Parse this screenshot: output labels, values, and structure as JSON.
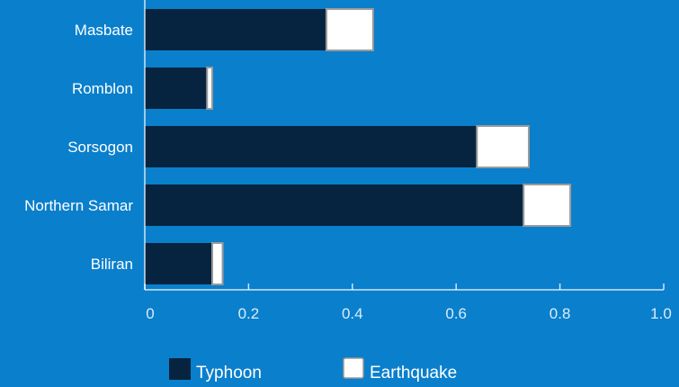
{
  "chart_data": {
    "type": "bar",
    "orientation": "horizontal",
    "stacked": true,
    "categories": [
      "Masbate",
      "Romblon",
      "Sorsogon",
      "Northern Samar",
      "Biliran"
    ],
    "series": [
      {
        "name": "Typhoon",
        "values": [
          0.35,
          0.12,
          0.64,
          0.73,
          0.13
        ]
      },
      {
        "name": "Earthquake",
        "values": [
          0.09,
          0.01,
          0.1,
          0.09,
          0.02
        ]
      }
    ],
    "xlim": [
      0,
      1.0
    ],
    "xticks": [
      "0",
      "0.2",
      "0.4",
      "0.6",
      "0.8",
      "1.0"
    ],
    "xtick_values": [
      0,
      0.2,
      0.4,
      0.6,
      0.8,
      1.0
    ],
    "grid": false,
    "legend_position": "bottom",
    "colors": {
      "background": "#0a7fcc",
      "Typhoon": "#06243f",
      "Earthquake": "#ffffff",
      "earthquake_stroke": "#9a9a9a",
      "axis": "#ffffff"
    }
  },
  "legend": {
    "typhoon_label": "Typhoon",
    "earthquake_label": "Earthquake"
  }
}
